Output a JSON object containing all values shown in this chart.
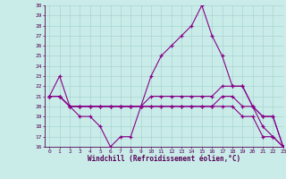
{
  "xlabel": "Windchill (Refroidissement éolien,°C)",
  "xlim": [
    -0.5,
    23
  ],
  "ylim": [
    16,
    30
  ],
  "xticks": [
    0,
    1,
    2,
    3,
    4,
    5,
    6,
    7,
    8,
    9,
    10,
    11,
    12,
    13,
    14,
    15,
    16,
    17,
    18,
    19,
    20,
    21,
    22,
    23
  ],
  "yticks": [
    16,
    17,
    18,
    19,
    20,
    21,
    22,
    23,
    24,
    25,
    26,
    27,
    28,
    29,
    30
  ],
  "bg_color": "#c9ece9",
  "line_color": "#880088",
  "grid_color": "#a8d4d0",
  "series": [
    [
      21,
      23,
      20,
      19,
      19,
      18,
      16,
      17,
      17,
      20,
      20,
      20,
      20,
      20,
      20,
      20,
      20,
      20,
      20,
      19,
      19,
      17,
      17,
      16
    ],
    [
      21,
      21,
      20,
      20,
      20,
      20,
      20,
      20,
      20,
      20,
      20,
      20,
      20,
      20,
      20,
      20,
      20,
      21,
      21,
      20,
      20,
      19,
      19,
      16
    ],
    [
      21,
      21,
      20,
      20,
      20,
      20,
      20,
      20,
      20,
      20,
      21,
      21,
      21,
      21,
      21,
      21,
      21,
      22,
      22,
      22,
      20,
      19,
      19,
      16
    ],
    [
      21,
      21,
      20,
      20,
      20,
      20,
      20,
      20,
      20,
      20,
      23,
      25,
      26,
      27,
      28,
      30,
      27,
      25,
      22,
      22,
      20,
      18,
      17,
      16
    ]
  ]
}
